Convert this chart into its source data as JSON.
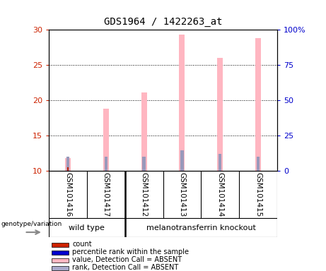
{
  "title": "GDS1964 / 1422263_at",
  "samples": [
    "GSM101416",
    "GSM101417",
    "GSM101412",
    "GSM101413",
    "GSM101414",
    "GSM101415"
  ],
  "ylim_left": [
    10,
    30
  ],
  "ylim_right": [
    0,
    100
  ],
  "yticks_left": [
    10,
    15,
    20,
    25,
    30
  ],
  "yticks_right": [
    0,
    25,
    50,
    75,
    100
  ],
  "ytick_labels_right": [
    "0",
    "25",
    "50",
    "75",
    "100%"
  ],
  "bar_bottom": 10,
  "pink_bar_tops": [
    11.8,
    18.8,
    21.1,
    29.3,
    26.0,
    28.8
  ],
  "blue_bar_tops": [
    12.0,
    12.0,
    12.0,
    12.85,
    12.4,
    12.0
  ],
  "red_bar_tops": [
    10.5,
    10.0,
    10.0,
    10.0,
    10.0,
    10.0
  ],
  "bar_width": 0.15,
  "pink_color": "#FFB6C1",
  "blue_color": "#9999BB",
  "red_color": "#CC2200",
  "left_tick_color": "#CC2200",
  "right_tick_color": "#0000CC",
  "sample_label_fontsize": 7.5,
  "genotype_label": "genotype/variation",
  "wild_type_label": "wild type",
  "knockout_label": "melanotransferrin knockout",
  "wild_type_count": 2,
  "knockout_count": 4,
  "legend_entries": [
    {
      "label": "count",
      "color": "#CC2200"
    },
    {
      "label": "percentile rank within the sample",
      "color": "#0000CC"
    },
    {
      "label": "value, Detection Call = ABSENT",
      "color": "#FFB6C1"
    },
    {
      "label": "rank, Detection Call = ABSENT",
      "color": "#AAAACC"
    }
  ],
  "bg_color": "#FFFFFF",
  "gray_cell_color": "#C8C8C8",
  "green_color": "#55EE55",
  "grid_color": "#000000"
}
